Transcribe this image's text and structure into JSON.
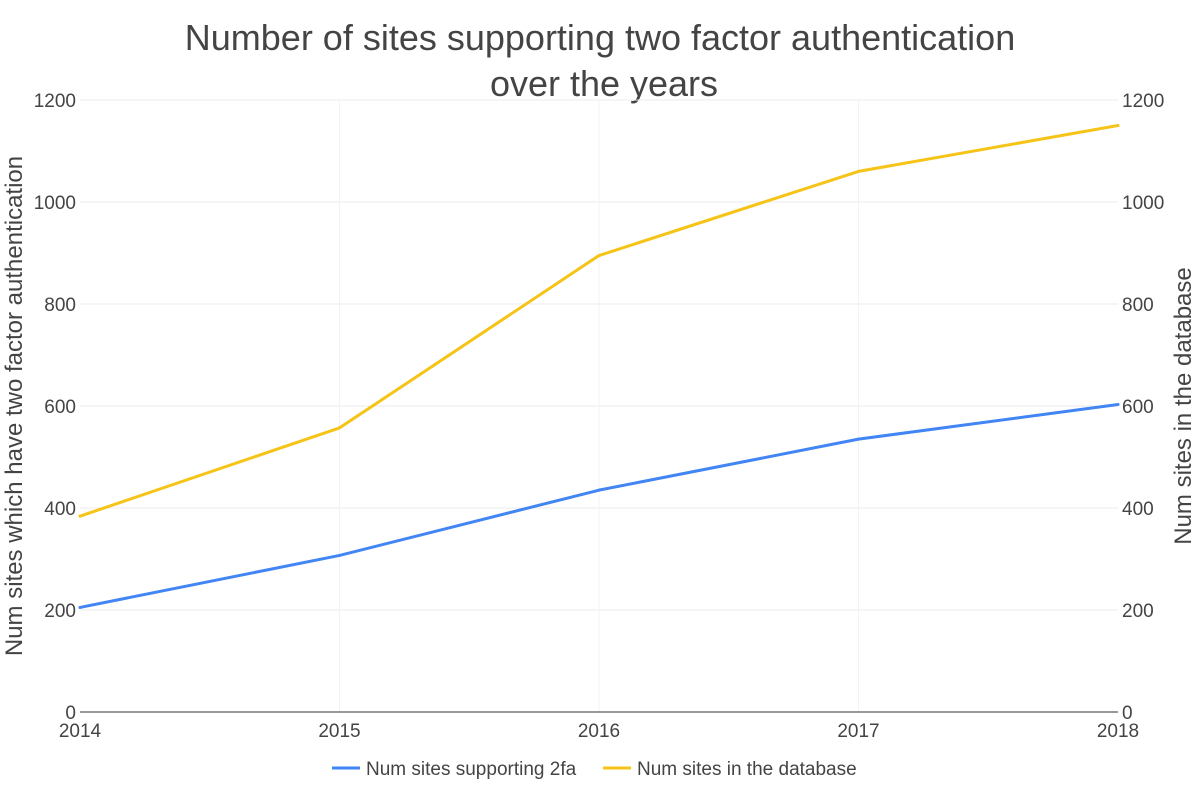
{
  "chart_data": {
    "type": "line",
    "title": "Number of sites supporting two factor authentication over the years",
    "title_lines": [
      "Number of sites supporting two factor authentication",
      "over the years"
    ],
    "xlabel": "",
    "ylabel_left": "Num sites which have two factor authentication",
    "ylabel_right": "Num sites in the database",
    "x": [
      "2014",
      "2015",
      "2016",
      "2017",
      "2018"
    ],
    "ylim_left": [
      0,
      1200
    ],
    "ylim_right": [
      0,
      1200
    ],
    "yticks_left": [
      "0",
      "200",
      "400",
      "600",
      "800",
      "1000",
      "1200"
    ],
    "yticks_right": [
      "0",
      "200",
      "400",
      "600",
      "800",
      "1000",
      "1200"
    ],
    "grid": true,
    "legend_position": "bottom",
    "series": [
      {
        "name": "Num sites supporting 2fa",
        "axis": "left",
        "color": "#4285f4",
        "values": [
          205,
          307,
          435,
          535,
          603
        ]
      },
      {
        "name": "Num sites in the database",
        "axis": "right",
        "color": "#f6c317",
        "values": [
          384,
          557,
          895,
          1060,
          1150
        ]
      }
    ]
  }
}
